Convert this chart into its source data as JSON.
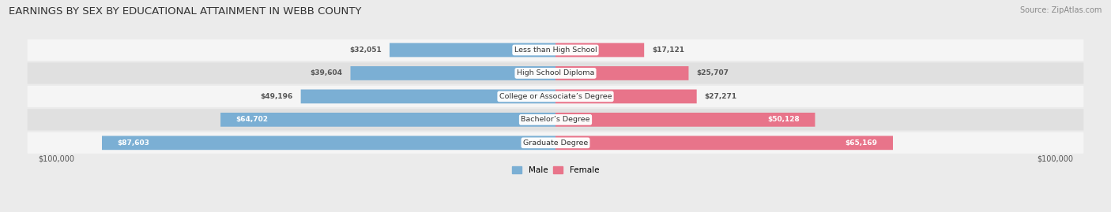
{
  "title": "EARNINGS BY SEX BY EDUCATIONAL ATTAINMENT IN WEBB COUNTY",
  "source": "Source: ZipAtlas.com",
  "categories": [
    "Less than High School",
    "High School Diploma",
    "College or Associate’s Degree",
    "Bachelor’s Degree",
    "Graduate Degree"
  ],
  "male_values": [
    32051,
    39604,
    49196,
    64702,
    87603
  ],
  "female_values": [
    17121,
    25707,
    27271,
    50128,
    65169
  ],
  "male_color": "#7bafd4",
  "female_color": "#e8748a",
  "male_label": "Male",
  "female_label": "Female",
  "axis_max": 100000,
  "bg_color": "#ebebeb",
  "row_colors": [
    "#f5f5f5",
    "#e0e0e0"
  ],
  "value_color_inside": "#ffffff",
  "value_color_outside": "#555555",
  "xlabel_left": "$100,000",
  "xlabel_right": "$100,000",
  "male_inside_threshold": 55000,
  "female_inside_threshold": 40000
}
